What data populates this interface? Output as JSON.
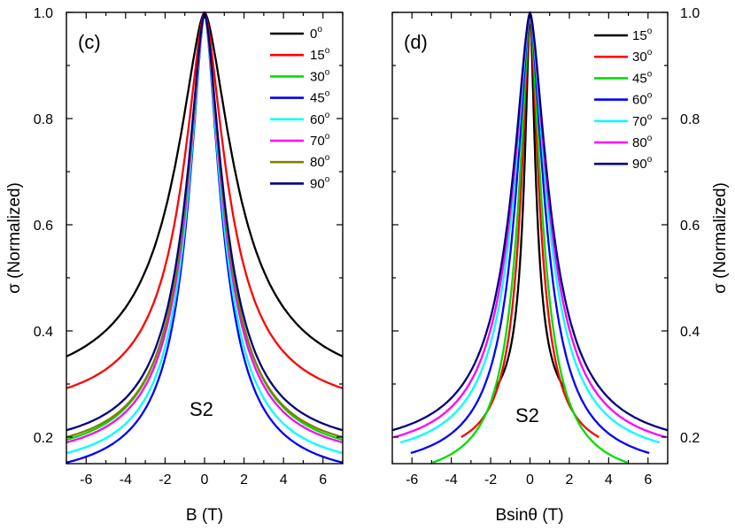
{
  "chart_data": [
    {
      "type": "line",
      "panel_label": "(c)",
      "annotation": "S2",
      "xlabel": "B (T)",
      "ylabel": "σ (Normalized)",
      "xlim": [
        -7,
        7
      ],
      "ylim": [
        0.15,
        1.0
      ],
      "xticks": [
        -6,
        -4,
        -2,
        0,
        2,
        4,
        6
      ],
      "yticks": [
        0.2,
        0.4,
        0.6,
        0.8,
        1.0
      ],
      "ytick_labels": [
        "0.2",
        "0.4",
        "0.6",
        "0.8",
        "1.0"
      ],
      "legend_position": "top-right",
      "series": [
        {
          "name": "0",
          "color": "#000000",
          "edge": 0.352,
          "halfwidth": 1.95
        },
        {
          "name": "15",
          "color": "#ff0000",
          "edge": 0.292,
          "halfwidth": 1.45
        },
        {
          "name": "30",
          "color": "#00dd00",
          "edge": 0.195,
          "halfwidth": 1.2
        },
        {
          "name": "45",
          "color": "#0000ff",
          "edge": 0.152,
          "halfwidth": 1.07
        },
        {
          "name": "60",
          "color": "#00ffff",
          "edge": 0.17,
          "halfwidth": 1.1
        },
        {
          "name": "70",
          "color": "#ff00ff",
          "edge": 0.19,
          "halfwidth": 1.15
        },
        {
          "name": "80",
          "color": "#808000",
          "edge": 0.2,
          "halfwidth": 1.18
        },
        {
          "name": "90",
          "color": "#000080",
          "edge": 0.213,
          "halfwidth": 1.22
        }
      ]
    },
    {
      "type": "line",
      "panel_label": "(d)",
      "annotation": "S2",
      "xlabel": "Bsinθ (T)",
      "ylabel": "σ (Normalized)",
      "xlim": [
        -7,
        7
      ],
      "ylim": [
        0.15,
        1.0
      ],
      "xticks": [
        -6,
        -4,
        -2,
        0,
        2,
        4,
        6
      ],
      "yticks": [
        0.2,
        0.4,
        0.6,
        0.8,
        1.0
      ],
      "ytick_labels": [
        "0.2",
        "0.4",
        "0.6",
        "0.8",
        "1.0"
      ],
      "legend_position": "top-right",
      "series": [
        {
          "name": "15",
          "color": "#000000",
          "xmax": 1.81,
          "edge": 0.29,
          "halfwidth": 0.38
        },
        {
          "name": "30",
          "color": "#ff0000",
          "xmax": 3.5,
          "edge": 0.2,
          "halfwidth": 0.6
        },
        {
          "name": "45",
          "color": "#00dd00",
          "xmax": 4.95,
          "edge": 0.152,
          "halfwidth": 0.76
        },
        {
          "name": "60",
          "color": "#0000ff",
          "xmax": 6.06,
          "edge": 0.17,
          "halfwidth": 0.95
        },
        {
          "name": "70",
          "color": "#00ffff",
          "xmax": 6.58,
          "edge": 0.19,
          "halfwidth": 1.08
        },
        {
          "name": "80",
          "color": "#ff00ff",
          "xmax": 6.9,
          "edge": 0.2,
          "halfwidth": 1.16
        },
        {
          "name": "90",
          "color": "#000080",
          "xmax": 7.0,
          "edge": 0.213,
          "halfwidth": 1.22
        }
      ]
    }
  ]
}
